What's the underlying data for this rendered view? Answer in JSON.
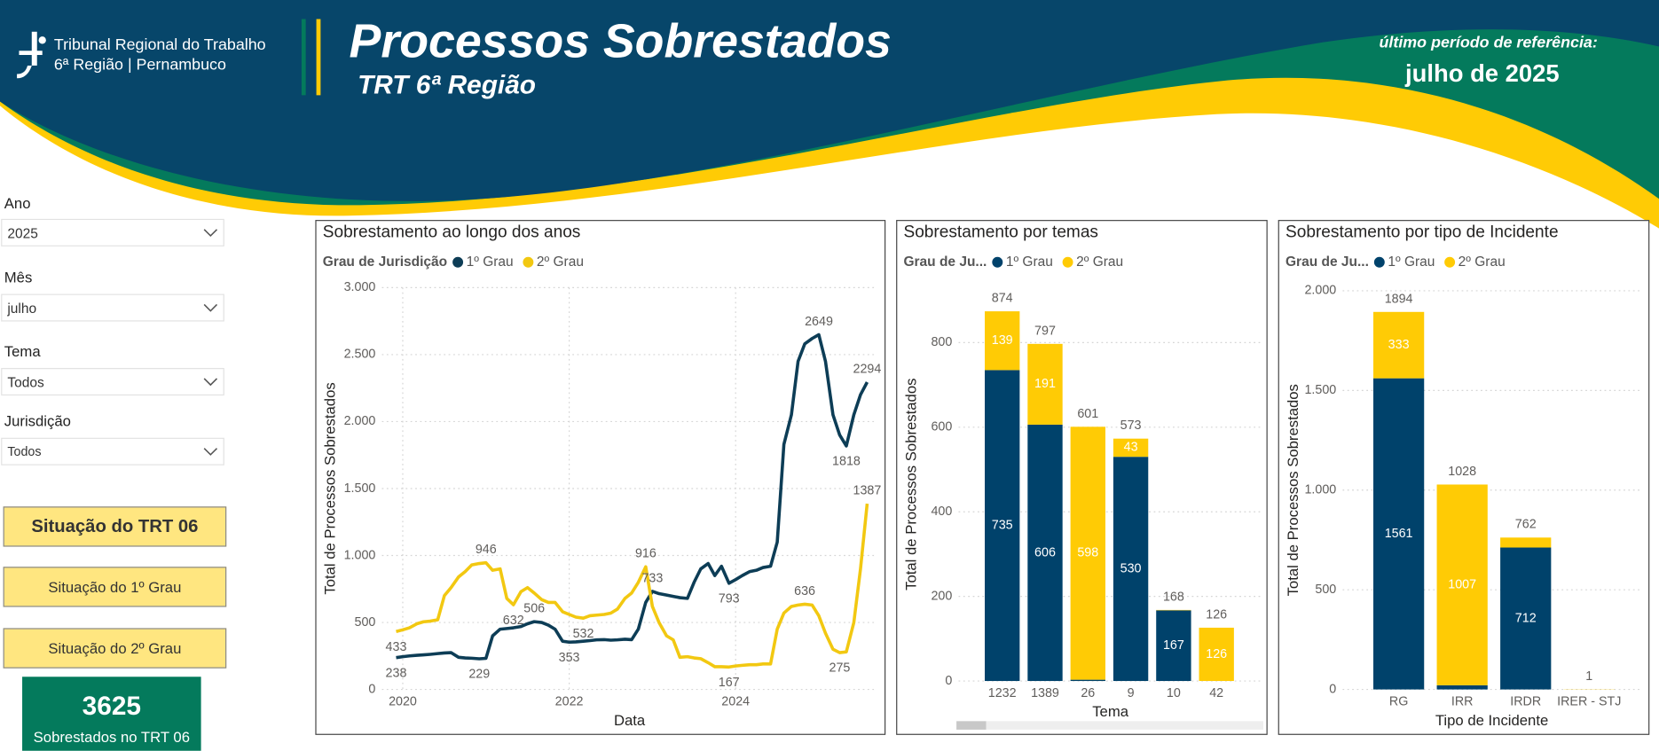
{
  "header": {
    "logo_line1": "Tribunal Regional do Trabalho",
    "logo_line2": "6ª Região | Pernambuco",
    "title": "Processos Sobrestados",
    "subtitle": "TRT 6ª Região",
    "reference_label": "último período de referência:",
    "reference_period": "julho de 2025"
  },
  "filters": [
    {
      "label": "Ano",
      "value": "2025"
    },
    {
      "label": "Mês",
      "value": "julho"
    },
    {
      "label": "Tema",
      "value": "Todos"
    },
    {
      "label": "Jurisdição",
      "value": "Todos"
    }
  ],
  "buttons": [
    "Situação do TRT 06",
    "Situação do 1º Grau",
    "Situação do 2º Grau"
  ],
  "kpi": {
    "value": 3625,
    "label": "Sobrestados no TRT 06"
  },
  "chart_data": [
    {
      "type": "line",
      "title": "Sobrestamento ao longo dos anos",
      "legend_title": "Grau de Jurisdição",
      "x_label": "Data",
      "y_label": "Total de Processos Sobrestados",
      "x": [
        2019.92,
        2020,
        2020.08,
        2020.17,
        2020.25,
        2020.33,
        2020.42,
        2020.5,
        2020.58,
        2020.67,
        2020.75,
        2020.83,
        2020.92,
        2021,
        2021.08,
        2021.17,
        2021.25,
        2021.33,
        2021.42,
        2021.5,
        2021.58,
        2021.67,
        2021.75,
        2021.83,
        2021.92,
        2022,
        2022.08,
        2022.17,
        2022.25,
        2022.33,
        2022.42,
        2022.5,
        2022.58,
        2022.67,
        2022.75,
        2022.83,
        2022.92,
        2023,
        2023.08,
        2023.17,
        2023.25,
        2023.33,
        2023.42,
        2023.5,
        2023.58,
        2023.67,
        2023.75,
        2023.83,
        2023.92,
        2024,
        2024.08,
        2024.17,
        2024.25,
        2024.33,
        2024.42,
        2024.5,
        2024.58,
        2024.67,
        2024.75,
        2024.83,
        2024.92,
        2025,
        2025.08,
        2025.17,
        2025.25,
        2025.33,
        2025.42,
        2025.5,
        2025.58
      ],
      "series": [
        {
          "name": "1º Grau",
          "color": "#0D3D56",
          "values": [
            238,
            245,
            250,
            255,
            258,
            262,
            268,
            272,
            275,
            240,
            235,
            233,
            229,
            232,
            400,
            450,
            455,
            460,
            470,
            490,
            506,
            500,
            480,
            450,
            360,
            353,
            355,
            360,
            365,
            370,
            372,
            368,
            370,
            375,
            372,
            450,
            650,
            733,
            715,
            705,
            695,
            685,
            680,
            800,
            900,
            940,
            850,
            920,
            793,
            820,
            850,
            880,
            890,
            910,
            920,
            1100,
            1830,
            2050,
            2450,
            2580,
            2620,
            2649,
            2450,
            2050,
            1900,
            1818,
            2050,
            2200,
            2294
          ],
          "labeled_points": [
            0,
            12,
            20,
            25,
            37,
            48,
            61,
            65,
            68
          ]
        },
        {
          "name": "2º Grau",
          "color": "#F2C811",
          "values": [
            433,
            445,
            460,
            490,
            505,
            510,
            520,
            700,
            760,
            840,
            880,
            930,
            940,
            946,
            890,
            900,
            680,
            632,
            730,
            760,
            720,
            670,
            650,
            650,
            580,
            560,
            540,
            532,
            550,
            555,
            560,
            570,
            600,
            680,
            720,
            800,
            916,
            620,
            500,
            400,
            370,
            240,
            245,
            235,
            230,
            200,
            170,
            170,
            167,
            175,
            180,
            185,
            185,
            190,
            190,
            450,
            570,
            620,
            630,
            636,
            630,
            550,
            420,
            300,
            275,
            280,
            500,
            900,
            1387
          ],
          "labeled_points": [
            0,
            13,
            17,
            27,
            36,
            48,
            59,
            64,
            68
          ]
        }
      ],
      "xlim": [
        2019.75,
        2025.7
      ],
      "xticks": [
        2020,
        2022,
        2024
      ],
      "ylim": [
        0,
        3000
      ],
      "yticks": [
        0,
        500,
        {
          "value": 1000,
          "label": "1.000"
        },
        {
          "value": 1500,
          "label": "1.500"
        },
        {
          "value": 2000,
          "label": "2.000"
        },
        {
          "value": 2500,
          "label": "2.500"
        },
        {
          "value": 3000,
          "label": "3.000"
        }
      ],
      "grid": true
    },
    {
      "type": "bar",
      "stacked": true,
      "title": "Sobrestamento por temas",
      "legend_title": "Grau de Ju...",
      "x_label": "Tema",
      "y_label": "Total de Processos Sobrestados",
      "categories": [
        "1232",
        "1389",
        "26",
        "9",
        "10",
        "42"
      ],
      "series": [
        {
          "name": "1º Grau",
          "color": "#00426B",
          "values": [
            735,
            606,
            3,
            530,
            167,
            0
          ]
        },
        {
          "name": "2º Grau",
          "color": "#FFCB05",
          "values": [
            139,
            191,
            598,
            43,
            1,
            126
          ]
        }
      ],
      "totals": [
        874,
        797,
        601,
        573,
        168,
        126
      ],
      "ylim": [
        0,
        930
      ],
      "yticks": [
        0,
        200,
        400,
        600,
        800
      ],
      "grid": true
    },
    {
      "type": "bar",
      "stacked": true,
      "title": "Sobrestamento por tipo de Incidente",
      "legend_title": "Grau de Ju...",
      "x_label": "Tipo de Incidente",
      "y_label": "Total de Processos Sobrestados",
      "categories": [
        "RG",
        "IRR",
        "IRDR",
        "IRER - STJ"
      ],
      "series": [
        {
          "name": "1º Grau",
          "color": "#00426B",
          "values": [
            1561,
            21,
            712,
            0
          ]
        },
        {
          "name": "2º Grau",
          "color": "#FFCB05",
          "values": [
            333,
            1007,
            50,
            1
          ]
        }
      ],
      "totals": [
        1894,
        1028,
        762,
        1
      ],
      "ylim": [
        0,
        2000
      ],
      "yticks": [
        0,
        500,
        {
          "value": 1000,
          "label": "1.000"
        },
        {
          "value": 1500,
          "label": "1.500"
        },
        {
          "value": 2000,
          "label": "2.000"
        }
      ],
      "grid": true
    }
  ]
}
